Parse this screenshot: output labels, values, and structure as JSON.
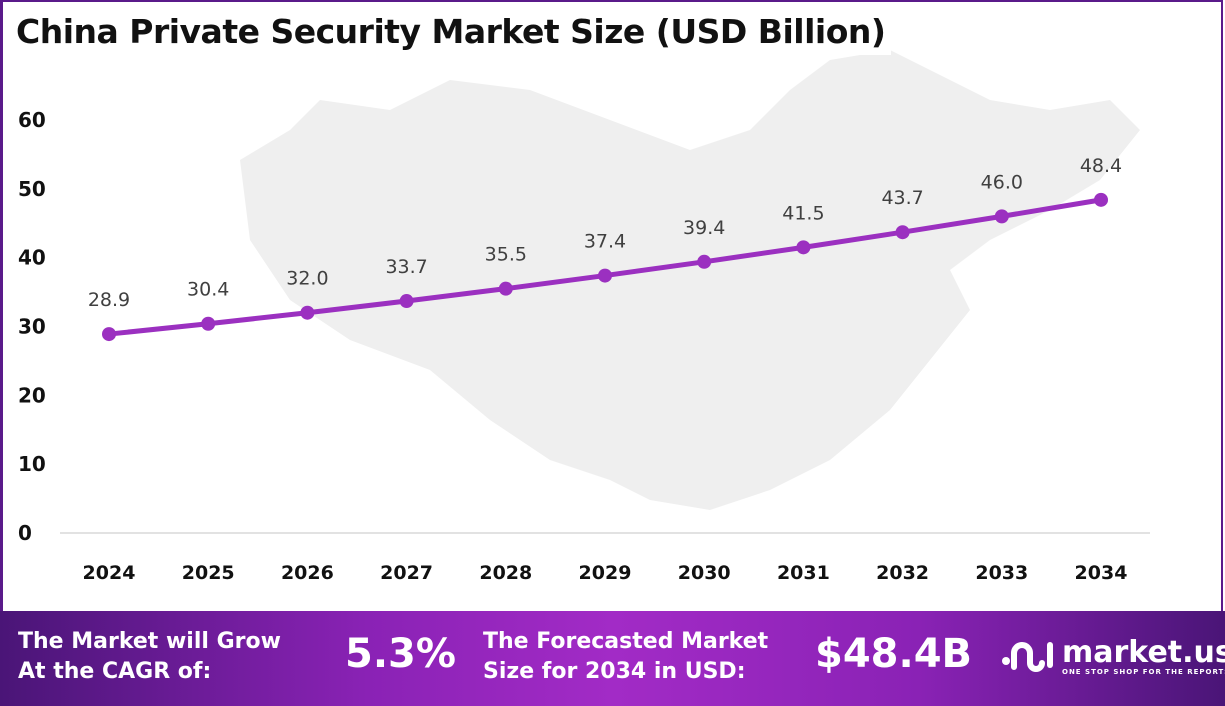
{
  "title": "China Private Security Market Size (USD Billion)",
  "chart_data": {
    "type": "line",
    "title": "China Private Security Market Size (USD Billion)",
    "categories": [
      "2024",
      "2025",
      "2026",
      "2027",
      "2028",
      "2029",
      "2030",
      "2031",
      "2032",
      "2033",
      "2034"
    ],
    "values": [
      28.9,
      30.4,
      32.0,
      33.7,
      35.5,
      37.4,
      39.4,
      41.5,
      43.7,
      46.0,
      48.4
    ],
    "yticks": [
      0,
      10,
      20,
      30,
      40,
      50,
      60
    ],
    "ylim": [
      0,
      60
    ],
    "grid": false,
    "line_color": "#9b30c0",
    "data_labels": true
  },
  "footer": {
    "cagr_label_1": "The Market will Grow",
    "cagr_label_2": "At the CAGR of:",
    "cagr_value": "5.3%",
    "forecast_label_1": "The Forecasted Market",
    "forecast_label_2": "Size for 2034 in USD:",
    "forecast_value": "$48.4B",
    "logo_name": "market.us",
    "logo_tagline": "ONE STOP SHOP FOR THE REPORTS"
  }
}
